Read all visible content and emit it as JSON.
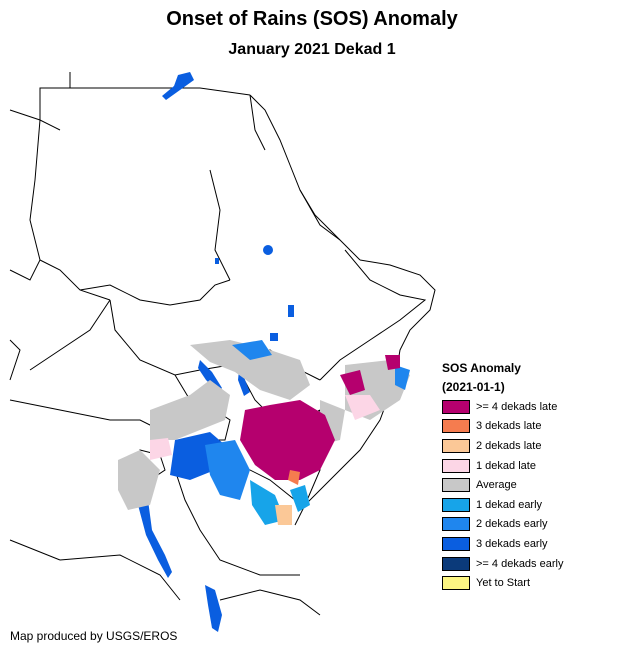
{
  "title": "Onset of Rains (SOS) Anomaly",
  "subtitle": "January 2021 Dekad 1",
  "legend": {
    "title": "SOS Anomaly",
    "date": "(2021-01-1)",
    "items": [
      {
        "label": ">= 4 dekads late",
        "color": "#b5006e"
      },
      {
        "label": "3 dekads late",
        "color": "#f57c4f"
      },
      {
        "label": "2 dekads late",
        "color": "#fbc897"
      },
      {
        "label": "1 dekad late",
        "color": "#fcd6e6"
      },
      {
        "label": "Average",
        "color": "#c8c8c8"
      },
      {
        "label": "1 dekad early",
        "color": "#17a4e9"
      },
      {
        "label": "2 dekads early",
        "color": "#1f86ee"
      },
      {
        "label": "3 dekads early",
        "color": "#0a5ee0"
      },
      {
        "label": ">= 4 dekads early",
        "color": "#0b3a7a"
      },
      {
        "label": "Yet to Start",
        "color": "#fcf683"
      }
    ]
  },
  "credit": "Map produced by USGS/EROS",
  "colors": {
    "late4": "#b5006e",
    "late3": "#f57c4f",
    "late2": "#fbc897",
    "late1": "#fcd6e6",
    "average": "#c8c8c8",
    "early1": "#17a4e9",
    "early2": "#1f86ee",
    "early3": "#0a5ee0",
    "border": "#000000"
  }
}
